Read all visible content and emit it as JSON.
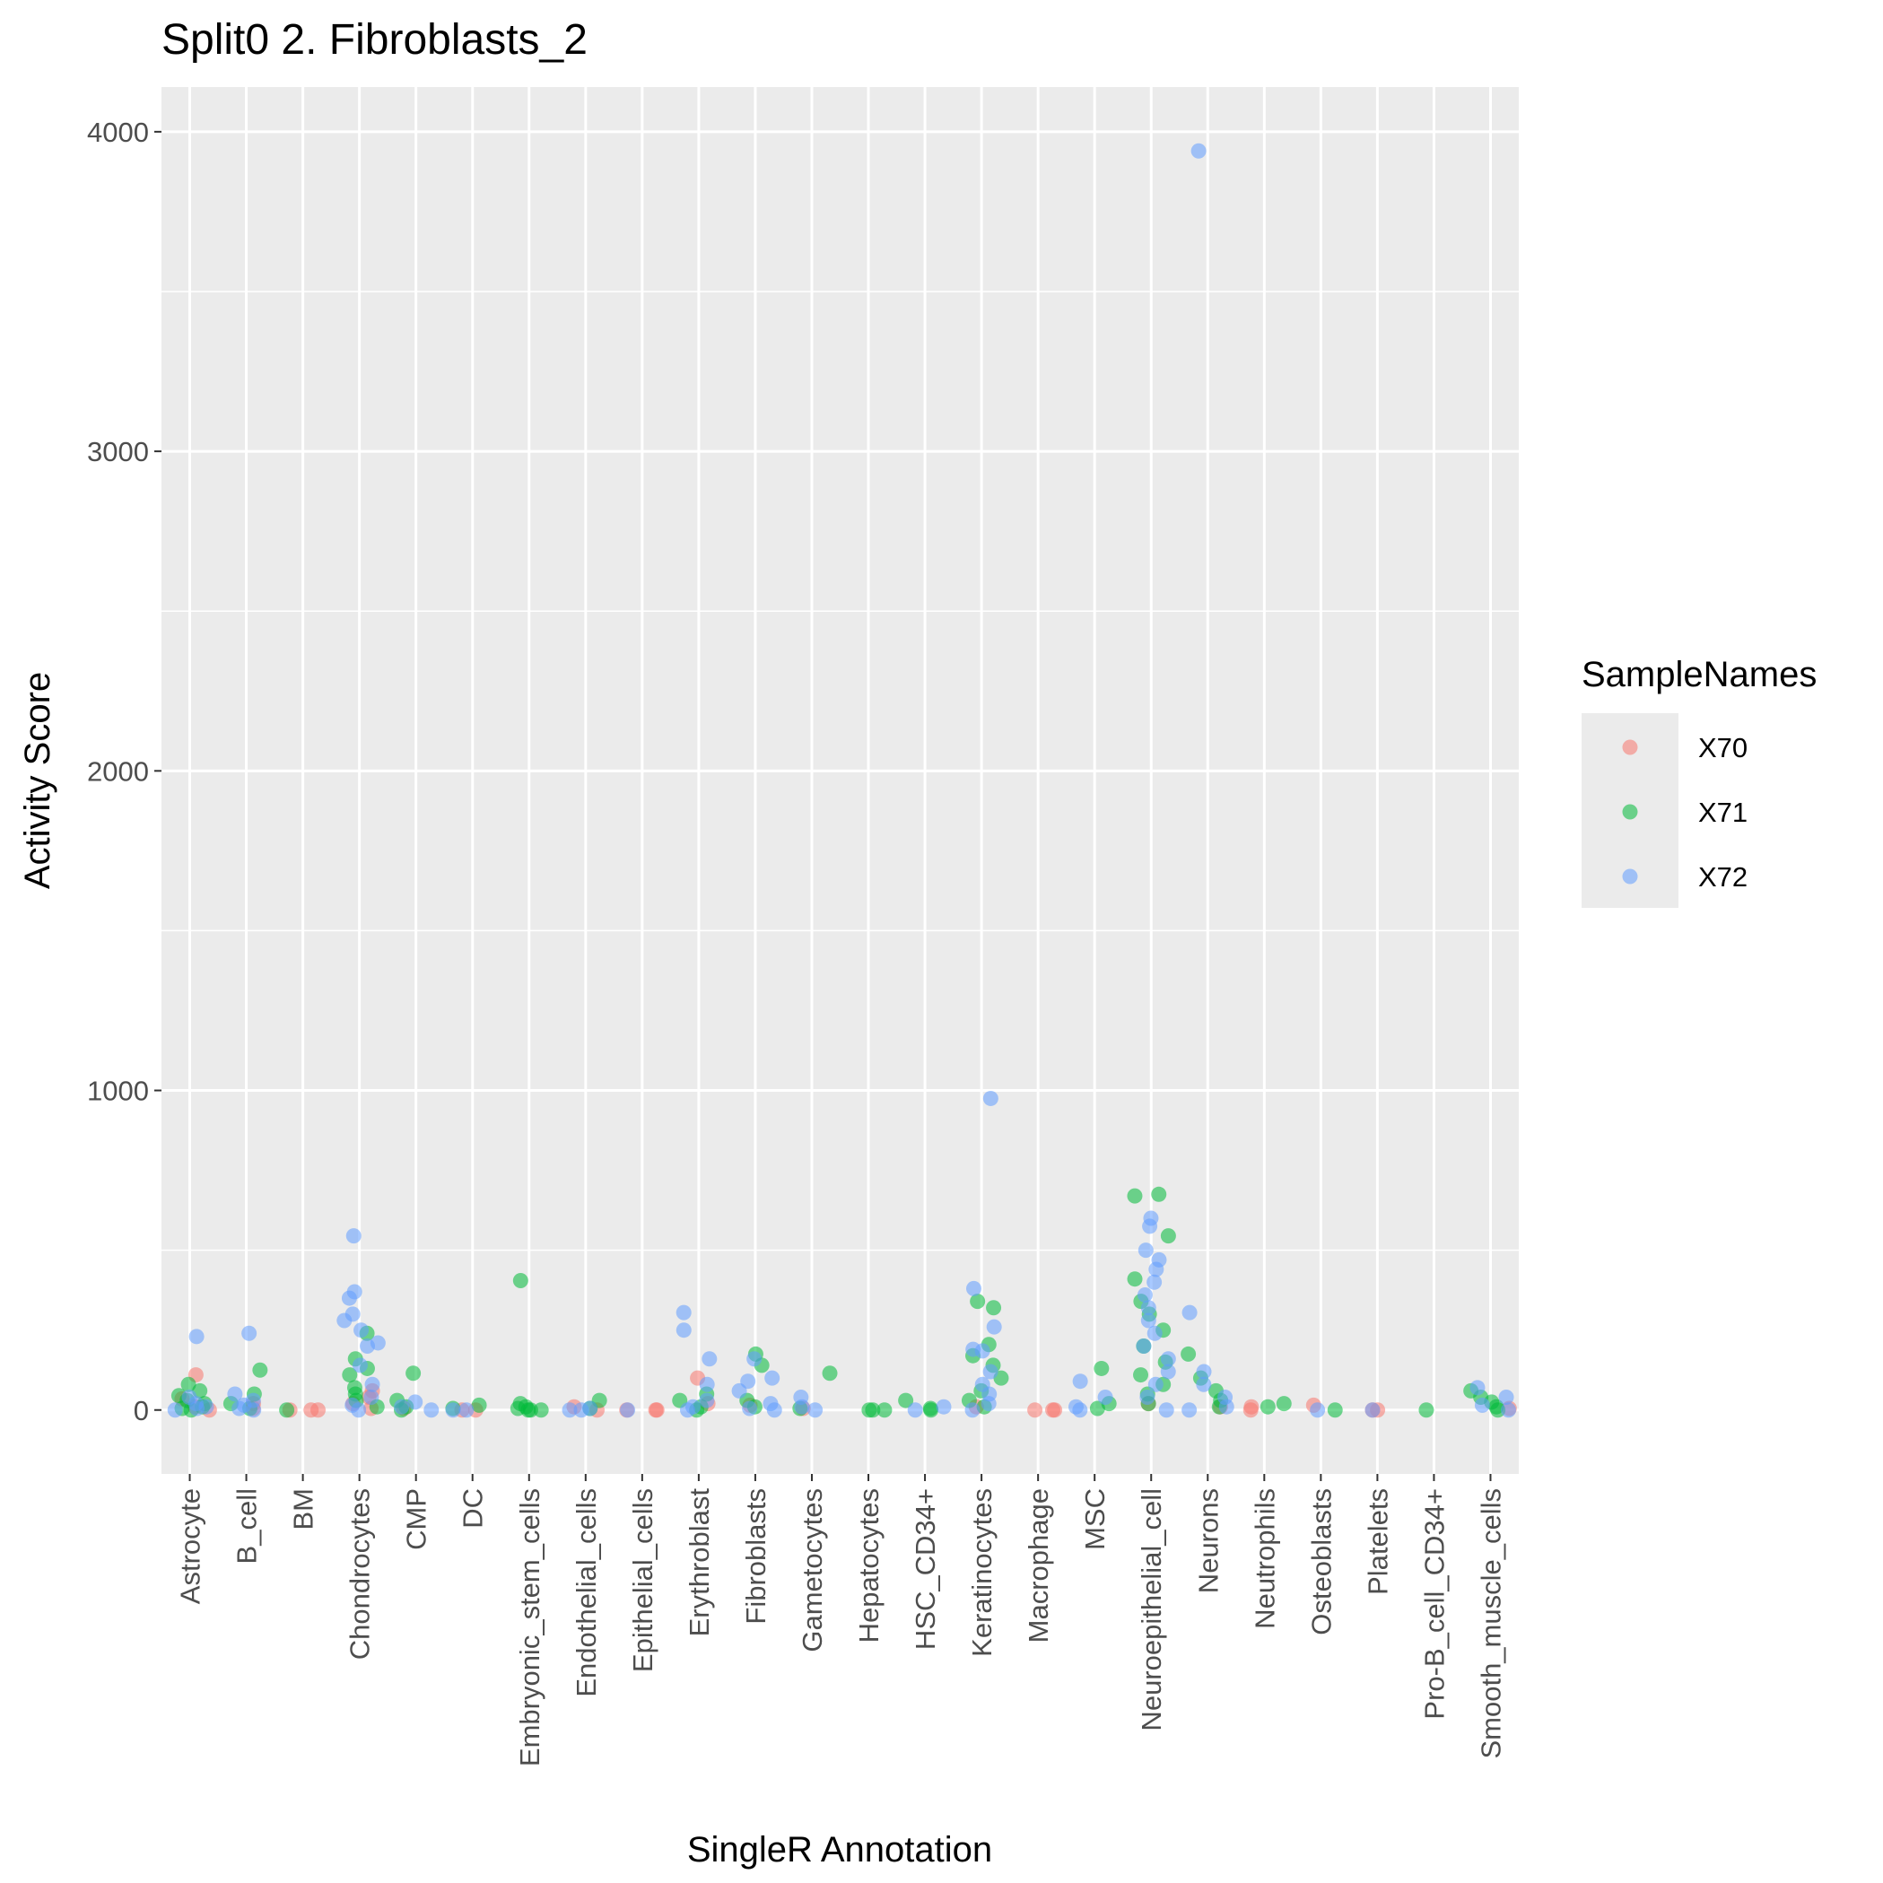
{
  "chart_data": {
    "type": "scatter",
    "title": "Split0 2. Fibroblasts_2",
    "xlabel": "SingleR Annotation",
    "ylabel": "Activity Score",
    "ylim": [
      -200,
      4140
    ],
    "yticks": [
      0,
      1000,
      2000,
      3000,
      4000
    ],
    "grid": true,
    "legend": {
      "title": "SampleNames",
      "position": "right"
    },
    "categories": [
      "Astrocyte",
      "B_cell",
      "BM",
      "Chondrocytes",
      "CMP",
      "DC",
      "Embryonic_stem_cells",
      "Endothelial_cells",
      "Epithelial_cells",
      "Erythroblast",
      "Fibroblasts",
      "Gametocytes",
      "Hepatocytes",
      "HSC_CD34+",
      "Keratinocytes",
      "Macrophage",
      "MSC",
      "Neuroepithelial_cell",
      "Neurons",
      "Neutrophils",
      "Osteoblasts",
      "Platelets",
      "Pro-B_cell_CD34+",
      "Smooth_muscle_cells"
    ],
    "series": [
      {
        "name": "X70",
        "color": "#F8766D",
        "points": [
          [
            "Astrocyte",
            110
          ],
          [
            "Astrocyte",
            35
          ],
          [
            "Astrocyte",
            10
          ],
          [
            "Astrocyte",
            0
          ],
          [
            "B_cell",
            20
          ],
          [
            "B_cell",
            5
          ],
          [
            "BM",
            0
          ],
          [
            "BM",
            0
          ],
          [
            "BM",
            0
          ],
          [
            "Chondrocytes",
            60
          ],
          [
            "Chondrocytes",
            40
          ],
          [
            "Chondrocytes",
            20
          ],
          [
            "Chondrocytes",
            5
          ],
          [
            "CMP",
            5
          ],
          [
            "DC",
            0
          ],
          [
            "DC",
            0
          ],
          [
            "Endothelial_cells",
            10
          ],
          [
            "Endothelial_cells",
            0
          ],
          [
            "Epithelial_cells",
            0
          ],
          [
            "Epithelial_cells",
            0
          ],
          [
            "Epithelial_cells",
            0
          ],
          [
            "Erythroblast",
            100
          ],
          [
            "Erythroblast",
            20
          ],
          [
            "Fibroblasts",
            15
          ],
          [
            "Gametocytes",
            5
          ],
          [
            "Keratinocytes",
            10
          ],
          [
            "Macrophage",
            0
          ],
          [
            "Macrophage",
            0
          ],
          [
            "Macrophage",
            0
          ],
          [
            "Neuroepithelial_cell",
            20
          ],
          [
            "Neurons",
            10
          ],
          [
            "Neutrophils",
            10
          ],
          [
            "Neutrophils",
            0
          ],
          [
            "Osteoblasts",
            15
          ],
          [
            "Platelets",
            0
          ],
          [
            "Platelets",
            0
          ],
          [
            "Smooth_muscle_cells",
            5
          ]
        ]
      },
      {
        "name": "X71",
        "color": "#00BA38",
        "points": [
          [
            "Astrocyte",
            80
          ],
          [
            "Astrocyte",
            60
          ],
          [
            "Astrocyte",
            45
          ],
          [
            "Astrocyte",
            30
          ],
          [
            "Astrocyte",
            20
          ],
          [
            "Astrocyte",
            10
          ],
          [
            "Astrocyte",
            5
          ],
          [
            "Astrocyte",
            0
          ],
          [
            "B_cell",
            125
          ],
          [
            "B_cell",
            50
          ],
          [
            "B_cell",
            20
          ],
          [
            "B_cell",
            5
          ],
          [
            "BM",
            0
          ],
          [
            "Chondrocytes",
            240
          ],
          [
            "Chondrocytes",
            160
          ],
          [
            "Chondrocytes",
            130
          ],
          [
            "Chondrocytes",
            110
          ],
          [
            "Chondrocytes",
            70
          ],
          [
            "Chondrocytes",
            50
          ],
          [
            "Chondrocytes",
            30
          ],
          [
            "Chondrocytes",
            10
          ],
          [
            "CMP",
            115
          ],
          [
            "CMP",
            30
          ],
          [
            "CMP",
            10
          ],
          [
            "CMP",
            0
          ],
          [
            "DC",
            15
          ],
          [
            "DC",
            5
          ],
          [
            "Embryonic_stem_cells",
            405
          ],
          [
            "Embryonic_stem_cells",
            20
          ],
          [
            "Embryonic_stem_cells",
            10
          ],
          [
            "Embryonic_stem_cells",
            5
          ],
          [
            "Embryonic_stem_cells",
            0
          ],
          [
            "Embryonic_stem_cells",
            0
          ],
          [
            "Embryonic_stem_cells",
            0
          ],
          [
            "Endothelial_cells",
            30
          ],
          [
            "Endothelial_cells",
            5
          ],
          [
            "Erythroblast",
            50
          ],
          [
            "Erythroblast",
            30
          ],
          [
            "Erythroblast",
            10
          ],
          [
            "Erythroblast",
            0
          ],
          [
            "Fibroblasts",
            175
          ],
          [
            "Fibroblasts",
            140
          ],
          [
            "Fibroblasts",
            30
          ],
          [
            "Fibroblasts",
            10
          ],
          [
            "Gametocytes",
            115
          ],
          [
            "Gametocytes",
            5
          ],
          [
            "Hepatocytes",
            0
          ],
          [
            "Hepatocytes",
            0
          ],
          [
            "Hepatocytes",
            0
          ],
          [
            "HSC_CD34+",
            30
          ],
          [
            "HSC_CD34+",
            5
          ],
          [
            "HSC_CD34+",
            0
          ],
          [
            "Keratinocytes",
            340
          ],
          [
            "Keratinocytes",
            320
          ],
          [
            "Keratinocytes",
            205
          ],
          [
            "Keratinocytes",
            170
          ],
          [
            "Keratinocytes",
            140
          ],
          [
            "Keratinocytes",
            100
          ],
          [
            "Keratinocytes",
            60
          ],
          [
            "Keratinocytes",
            30
          ],
          [
            "Keratinocytes",
            10
          ],
          [
            "MSC",
            130
          ],
          [
            "MSC",
            20
          ],
          [
            "MSC",
            5
          ],
          [
            "Neuroepithelial_cell",
            675
          ],
          [
            "Neuroepithelial_cell",
            670
          ],
          [
            "Neuroepithelial_cell",
            545
          ],
          [
            "Neuroepithelial_cell",
            410
          ],
          [
            "Neuroepithelial_cell",
            340
          ],
          [
            "Neuroepithelial_cell",
            300
          ],
          [
            "Neuroepithelial_cell",
            250
          ],
          [
            "Neuroepithelial_cell",
            200
          ],
          [
            "Neuroepithelial_cell",
            150
          ],
          [
            "Neuroepithelial_cell",
            110
          ],
          [
            "Neuroepithelial_cell",
            80
          ],
          [
            "Neuroepithelial_cell",
            50
          ],
          [
            "Neuroepithelial_cell",
            20
          ],
          [
            "Neurons",
            175
          ],
          [
            "Neurons",
            100
          ],
          [
            "Neurons",
            60
          ],
          [
            "Neurons",
            30
          ],
          [
            "Neurons",
            10
          ],
          [
            "Neutrophils",
            20
          ],
          [
            "Neutrophils",
            10
          ],
          [
            "Osteoblasts",
            0
          ],
          [
            "Pro-B_cell_CD34+",
            0
          ],
          [
            "Smooth_muscle_cells",
            60
          ],
          [
            "Smooth_muscle_cells",
            40
          ],
          [
            "Smooth_muscle_cells",
            25
          ],
          [
            "Smooth_muscle_cells",
            10
          ],
          [
            "Smooth_muscle_cells",
            0
          ]
        ]
      },
      {
        "name": "X72",
        "color": "#619CFF",
        "points": [
          [
            "Astrocyte",
            230
          ],
          [
            "Astrocyte",
            40
          ],
          [
            "Astrocyte",
            20
          ],
          [
            "Astrocyte",
            10
          ],
          [
            "Astrocyte",
            5
          ],
          [
            "Astrocyte",
            0
          ],
          [
            "B_cell",
            240
          ],
          [
            "B_cell",
            50
          ],
          [
            "B_cell",
            30
          ],
          [
            "B_cell",
            15
          ],
          [
            "B_cell",
            5
          ],
          [
            "B_cell",
            0
          ],
          [
            "Chondrocytes",
            545
          ],
          [
            "Chondrocytes",
            370
          ],
          [
            "Chondrocytes",
            350
          ],
          [
            "Chondrocytes",
            300
          ],
          [
            "Chondrocytes",
            280
          ],
          [
            "Chondrocytes",
            250
          ],
          [
            "Chondrocytes",
            210
          ],
          [
            "Chondrocytes",
            200
          ],
          [
            "Chondrocytes",
            140
          ],
          [
            "Chondrocytes",
            80
          ],
          [
            "Chondrocytes",
            40
          ],
          [
            "Chondrocytes",
            15
          ],
          [
            "Chondrocytes",
            0
          ],
          [
            "CMP",
            25
          ],
          [
            "CMP",
            10
          ],
          [
            "CMP",
            0
          ],
          [
            "DC",
            0
          ],
          [
            "DC",
            0
          ],
          [
            "Endothelial_cells",
            5
          ],
          [
            "Endothelial_cells",
            0
          ],
          [
            "Endothelial_cells",
            0
          ],
          [
            "Epithelial_cells",
            0
          ],
          [
            "Erythroblast",
            305
          ],
          [
            "Erythroblast",
            250
          ],
          [
            "Erythroblast",
            160
          ],
          [
            "Erythroblast",
            80
          ],
          [
            "Erythroblast",
            30
          ],
          [
            "Erythroblast",
            10
          ],
          [
            "Erythroblast",
            0
          ],
          [
            "Fibroblasts",
            160
          ],
          [
            "Fibroblasts",
            100
          ],
          [
            "Fibroblasts",
            90
          ],
          [
            "Fibroblasts",
            60
          ],
          [
            "Fibroblasts",
            20
          ],
          [
            "Fibroblasts",
            5
          ],
          [
            "Fibroblasts",
            0
          ],
          [
            "Gametocytes",
            40
          ],
          [
            "Gametocytes",
            10
          ],
          [
            "Gametocytes",
            0
          ],
          [
            "HSC_CD34+",
            10
          ],
          [
            "HSC_CD34+",
            0
          ],
          [
            "Keratinocytes",
            975
          ],
          [
            "Keratinocytes",
            380
          ],
          [
            "Keratinocytes",
            260
          ],
          [
            "Keratinocytes",
            190
          ],
          [
            "Keratinocytes",
            185
          ],
          [
            "Keratinocytes",
            120
          ],
          [
            "Keratinocytes",
            80
          ],
          [
            "Keratinocytes",
            50
          ],
          [
            "Keratinocytes",
            20
          ],
          [
            "Keratinocytes",
            0
          ],
          [
            "MSC",
            90
          ],
          [
            "MSC",
            40
          ],
          [
            "MSC",
            10
          ],
          [
            "MSC",
            0
          ],
          [
            "Neuroepithelial_cell",
            600
          ],
          [
            "Neuroepithelial_cell",
            575
          ],
          [
            "Neuroepithelial_cell",
            500
          ],
          [
            "Neuroepithelial_cell",
            470
          ],
          [
            "Neuroepithelial_cell",
            440
          ],
          [
            "Neuroepithelial_cell",
            400
          ],
          [
            "Neuroepithelial_cell",
            360
          ],
          [
            "Neuroepithelial_cell",
            320
          ],
          [
            "Neuroepithelial_cell",
            280
          ],
          [
            "Neuroepithelial_cell",
            240
          ],
          [
            "Neuroepithelial_cell",
            200
          ],
          [
            "Neuroepithelial_cell",
            160
          ],
          [
            "Neuroepithelial_cell",
            120
          ],
          [
            "Neuroepithelial_cell",
            80
          ],
          [
            "Neuroepithelial_cell",
            40
          ],
          [
            "Neuroepithelial_cell",
            0
          ],
          [
            "Neurons",
            3940
          ],
          [
            "Neurons",
            305
          ],
          [
            "Neurons",
            120
          ],
          [
            "Neurons",
            80
          ],
          [
            "Neurons",
            40
          ],
          [
            "Neurons",
            10
          ],
          [
            "Neurons",
            0
          ],
          [
            "Osteoblasts",
            0
          ],
          [
            "Platelets",
            0
          ],
          [
            "Smooth_muscle_cells",
            70
          ],
          [
            "Smooth_muscle_cells",
            40
          ],
          [
            "Smooth_muscle_cells",
            15
          ],
          [
            "Smooth_muscle_cells",
            0
          ]
        ]
      }
    ]
  }
}
